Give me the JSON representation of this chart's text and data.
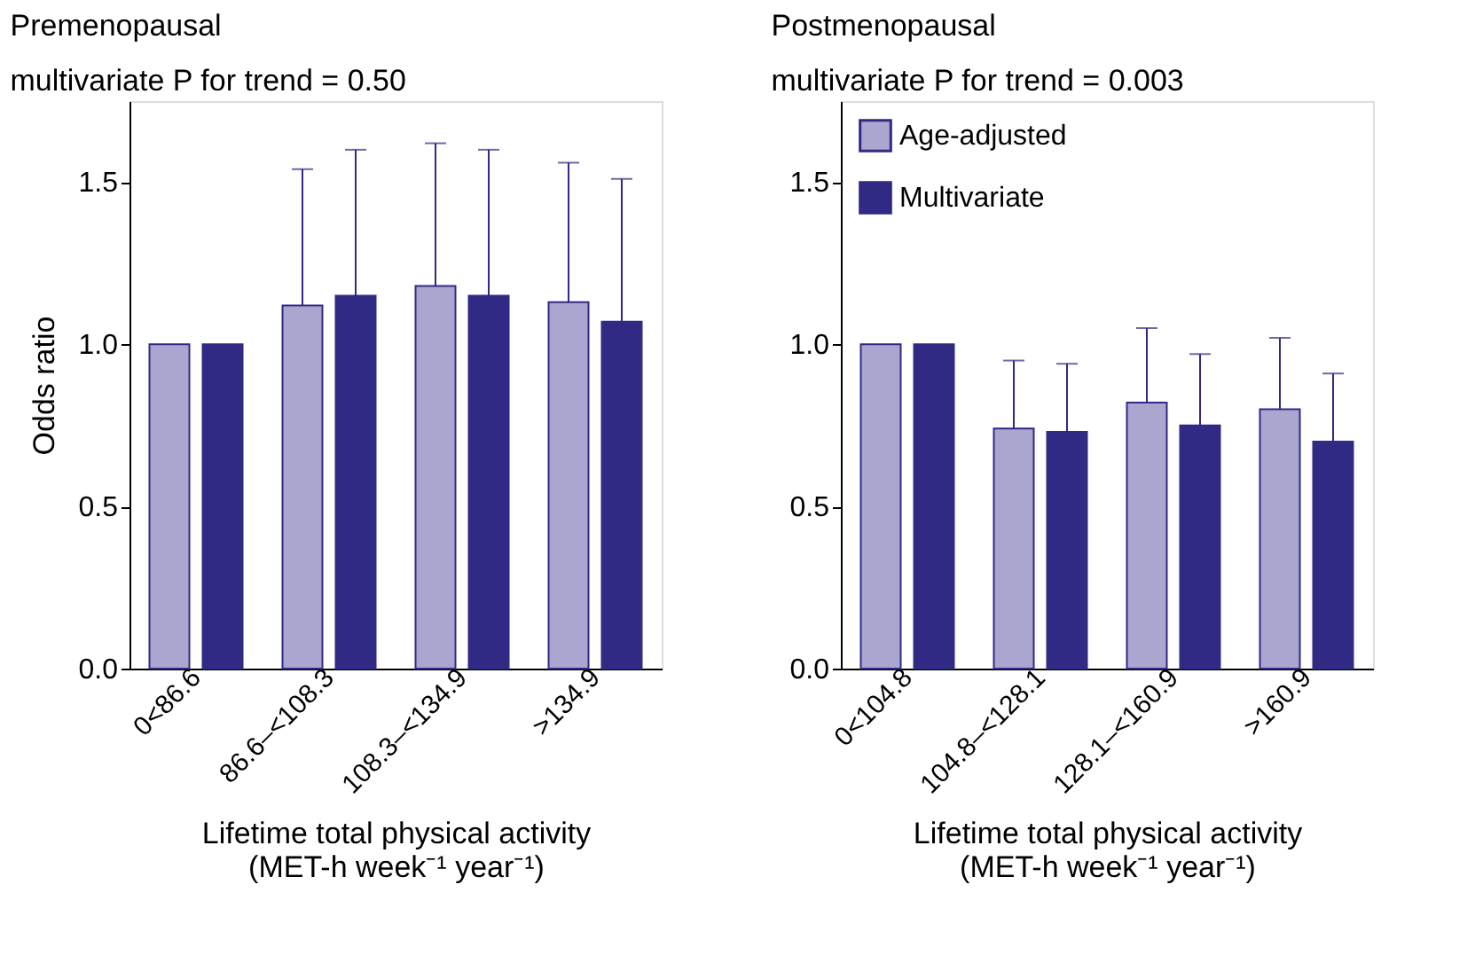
{
  "chart_data": [
    {
      "type": "bar",
      "title": "Premenopausal",
      "subtitle": "multivariate P for trend = 0.50",
      "xlabel": "Lifetime total physical activity\n(MET-h week⁻¹ year⁻¹)",
      "ylabel": "Odds ratio",
      "categories": [
        "0<86.6",
        "86.6–<108.3",
        "108.3–<134.9",
        ">134.9"
      ],
      "series": [
        {
          "color": "#aaa6d0",
          "values": [
            1.0,
            1.12,
            1.18,
            1.13
          ],
          "errors": [
            null,
            [
              1.12,
              1.54
            ],
            [
              1.18,
              1.62
            ],
            [
              1.13,
              1.56
            ]
          ]
        },
        {
          "color": "#302a85",
          "values": [
            1.0,
            1.15,
            1.15,
            1.07
          ],
          "errors": [
            null,
            [
              1.15,
              1.6
            ],
            [
              1.15,
              1.6
            ],
            [
              1.07,
              1.51
            ]
          ]
        }
      ],
      "ylim": [
        0,
        1.75
      ],
      "yticks": [
        {
          "value": 0,
          "label": "0.0"
        },
        {
          "value": 0.5,
          "label": "0.5"
        },
        {
          "value": 1,
          "label": "1.0"
        },
        {
          "value": 1.5,
          "label": "1.5"
        }
      ],
      "grid": false,
      "legend": false
    },
    {
      "type": "bar",
      "title": "Postmenopausal",
      "subtitle": "multivariate P for trend = 0.003",
      "xlabel": "Lifetime total physical activity\n(MET-h week⁻¹ year⁻¹)",
      "categories": [
        "0<104.8",
        "104.8–<128.1",
        "128.1–<160.9",
        ">160.9"
      ],
      "series": [
        {
          "name": "Age-adjusted",
          "color": "#aaa6d0",
          "values": [
            1.0,
            0.74,
            0.82,
            0.8
          ],
          "errors": [
            null,
            [
              0.74,
              0.95
            ],
            [
              0.82,
              1.05
            ],
            [
              0.8,
              1.02
            ]
          ]
        },
        {
          "name": "Multivariate",
          "color": "#302a85",
          "values": [
            1.0,
            0.73,
            0.75,
            0.7
          ],
          "errors": [
            null,
            [
              0.73,
              0.94
            ],
            [
              0.75,
              0.97
            ],
            [
              0.7,
              0.91
            ]
          ]
        }
      ],
      "ylim": [
        0,
        1.75
      ],
      "yticks": [
        {
          "value": 0,
          "label": "0.0"
        },
        {
          "value": 0.5,
          "label": "0.5"
        },
        {
          "value": 1,
          "label": "1.0"
        },
        {
          "value": 1.5,
          "label": "1.5"
        }
      ],
      "grid": false,
      "legend": "top left"
    }
  ]
}
